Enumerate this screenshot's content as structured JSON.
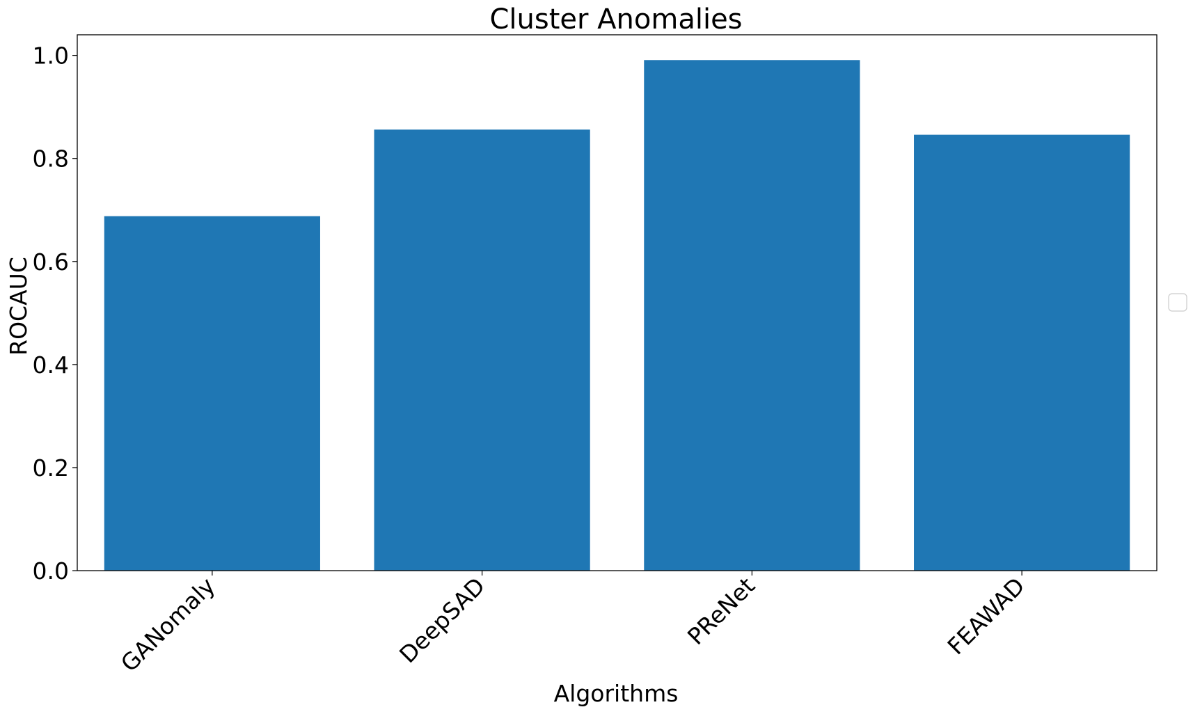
{
  "chart_data": {
    "type": "bar",
    "title": "Cluster Anomalies",
    "xlabel": "Algorithms",
    "ylabel": "ROCAUC",
    "categories": [
      "GANomaly",
      "DeepSAD",
      "PReNet",
      "FEAWAD"
    ],
    "values": [
      0.688,
      0.856,
      0.991,
      0.846
    ],
    "ylim": [
      0,
      1.04
    ],
    "yticks": [
      "0.0",
      "0.2",
      "0.4",
      "0.6",
      "0.8",
      "1.0"
    ],
    "bar_color": "#1f77b4",
    "grid": false,
    "legend_position": "center-right"
  }
}
